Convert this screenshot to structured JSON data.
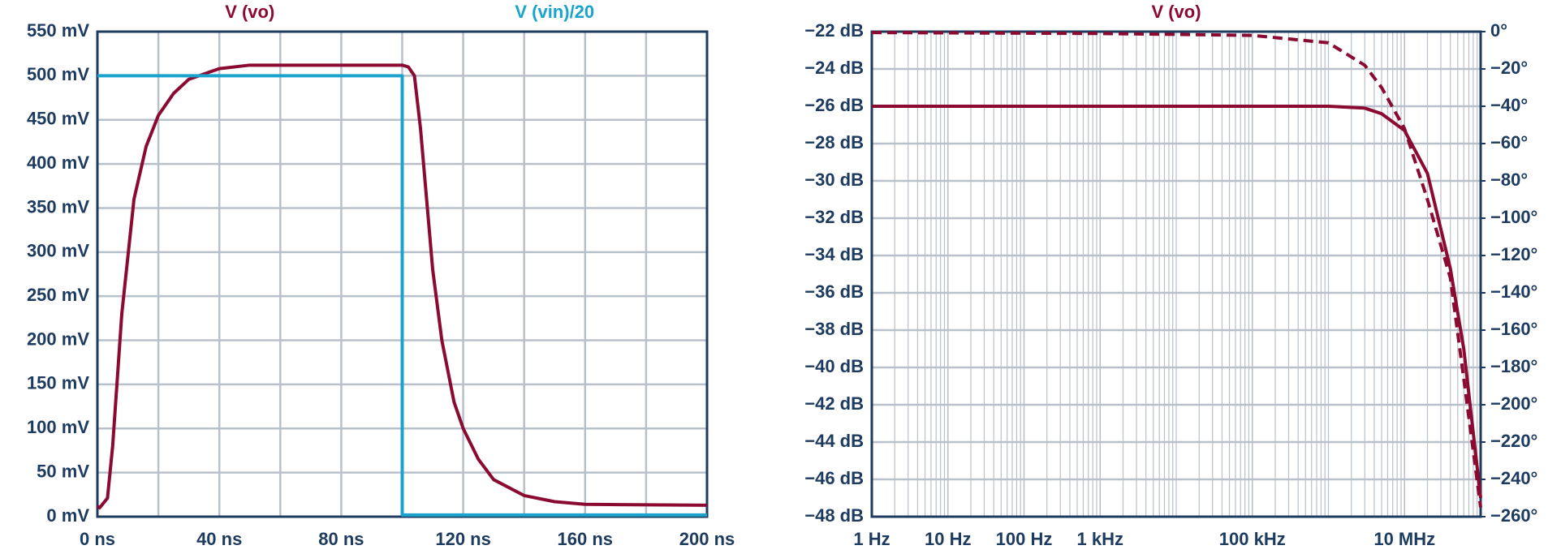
{
  "chart_data": [
    {
      "type": "line",
      "xlim": [
        0,
        200
      ],
      "xticks": [
        {
          "value": 0,
          "label": "0 ns"
        },
        {
          "value": 40,
          "label": "40 ns"
        },
        {
          "value": 80,
          "label": "80 ns"
        },
        {
          "value": 120,
          "label": "120 ns"
        },
        {
          "value": 160,
          "label": "160 ns"
        },
        {
          "value": 200,
          "label": "200 ns"
        }
      ],
      "ylim": [
        0,
        550
      ],
      "yticks": [
        {
          "value": 0,
          "label": "0 mV"
        },
        {
          "value": 50,
          "label": "50 mV"
        },
        {
          "value": 100,
          "label": "100 mV"
        },
        {
          "value": 150,
          "label": "150 mV"
        },
        {
          "value": 200,
          "label": "200 mV"
        },
        {
          "value": 250,
          "label": "250 mV"
        },
        {
          "value": 300,
          "label": "300 mV"
        },
        {
          "value": 350,
          "label": "350 mV"
        },
        {
          "value": 400,
          "label": "400 mV"
        },
        {
          "value": 450,
          "label": "450 mV"
        },
        {
          "value": 500,
          "label": "500 mV"
        },
        {
          "value": 550,
          "label": "550 mV"
        }
      ],
      "grid": true,
      "series": [
        {
          "name": "V (vo)",
          "color": "#8b0a31",
          "x": [
            0,
            0.7,
            3.3,
            5,
            8,
            12,
            16,
            20,
            25,
            30,
            40,
            50,
            100,
            102,
            104,
            106,
            108,
            110,
            113,
            117,
            120,
            125,
            130,
            140,
            150,
            160,
            200
          ],
          "values": [
            12,
            10,
            21,
            80,
            230,
            360,
            420,
            455,
            480,
            496,
            508,
            512,
            512,
            510,
            500,
            440,
            360,
            280,
            200,
            130,
            100,
            65,
            42,
            24,
            17,
            14,
            13
          ]
        },
        {
          "name": "V (vin)/20",
          "color": "#1aa3cc",
          "x": [
            0,
            100,
            100,
            200
          ],
          "values": [
            500,
            500,
            2,
            2
          ]
        }
      ]
    },
    {
      "type": "line",
      "log_x": true,
      "xlim": [
        1,
        100000000
      ],
      "xticks": [
        {
          "value": 1,
          "label": "1 Hz"
        },
        {
          "value": 10,
          "label": "10 Hz"
        },
        {
          "value": 100,
          "label": "100 Hz"
        },
        {
          "value": 1000,
          "label": "1 kHz"
        },
        {
          "value": 100000,
          "label": "100 kHz"
        },
        {
          "value": 10000000,
          "label": "10 MHz"
        }
      ],
      "ylim": [
        -48,
        -22
      ],
      "yticks": [
        {
          "value": -48,
          "label": "−48 dB"
        },
        {
          "value": -46,
          "label": "−46 dB"
        },
        {
          "value": -44,
          "label": "−44 dB"
        },
        {
          "value": -42,
          "label": "−42 dB"
        },
        {
          "value": -40,
          "label": "−40 dB"
        },
        {
          "value": -38,
          "label": "−38 dB"
        },
        {
          "value": -36,
          "label": "−36 dB"
        },
        {
          "value": -34,
          "label": "−34 dB"
        },
        {
          "value": -32,
          "label": "−32 dB"
        },
        {
          "value": -30,
          "label": "−30 dB"
        },
        {
          "value": -28,
          "label": "−28 dB"
        },
        {
          "value": -26,
          "label": "−26 dB"
        },
        {
          "value": -24,
          "label": "−24 dB"
        },
        {
          "value": -22,
          "label": "−22 dB"
        }
      ],
      "y2lim": [
        -260,
        0
      ],
      "y2ticks": [
        {
          "value": -260,
          "label": "−260°"
        },
        {
          "value": -240,
          "label": "−240°"
        },
        {
          "value": -220,
          "label": "−220°"
        },
        {
          "value": -200,
          "label": "−200°"
        },
        {
          "value": -180,
          "label": "−180°"
        },
        {
          "value": -160,
          "label": "−160°"
        },
        {
          "value": -140,
          "label": "−140°"
        },
        {
          "value": -120,
          "label": "−120°"
        },
        {
          "value": -100,
          "label": "−100°"
        },
        {
          "value": -80,
          "label": "−80°"
        },
        {
          "value": -60,
          "label": "−60°"
        },
        {
          "value": -40,
          "label": "−40°"
        },
        {
          "value": -20,
          "label": "−20°"
        },
        {
          "value": 0,
          "label": "0°"
        }
      ],
      "grid": true,
      "series": [
        {
          "name": "V (vo)",
          "color": "#8b0a31",
          "x": [
            1,
            100000,
            1000000,
            3000000,
            5000000,
            10000000,
            20000000,
            40000000,
            60000000,
            100000000
          ],
          "values": [
            -26,
            -26,
            -26,
            -26.1,
            -26.4,
            -27.3,
            -29.6,
            -34.7,
            -39,
            -47
          ]
        },
        {
          "color": "#8b0a31",
          "axis": "y2",
          "dashed": true,
          "x": [
            1,
            1000,
            100000,
            1000000,
            3000000,
            5000000,
            10000000,
            20000000,
            40000000,
            60000000,
            100000000
          ],
          "values": [
            -0.5,
            -1,
            -2,
            -6,
            -18,
            -30,
            -52,
            -90,
            -132,
            -186,
            -255
          ]
        }
      ]
    }
  ]
}
